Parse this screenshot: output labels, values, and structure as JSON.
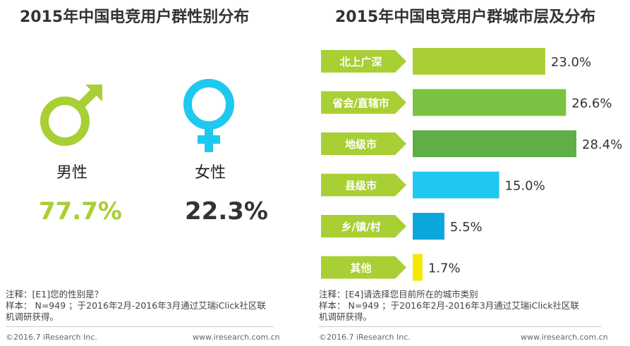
{
  "left_panel": {
    "title": "2015年中国电竞用户群性别分布",
    "male": {
      "label": "男性",
      "value": "77.7%",
      "color": "#a8cf34"
    },
    "female": {
      "label": "女性",
      "value": "22.3%",
      "color": "#1fc8ef"
    },
    "note_line1": "注释：[E1]您的性别是？",
    "note_line2": "样本： N=949 ；于2016年2月-2016年3月通过艾瑞iClick社区联",
    "note_line3": "机调研获得。",
    "footer_left": "©2016.7 iResearch Inc.",
    "footer_right": "www.iresearch.com.cn"
  },
  "right_panel": {
    "note_line1": "注释：[E4]请选择您目前所在的城市类别",
    "note_line2": "样本： N=949 ；于2016年2月-2016年3月通过艾瑞iClick社区联",
    "note_line3": "机调研获得。",
    "footer_left": "©2016.7 iResearch Inc.",
    "footer_right": "www.iresearch.com.cn"
  },
  "chart_data": {
    "type": "bar",
    "orientation": "horizontal",
    "title": "2015年中国电竞用户群城市层及分布",
    "categories": [
      "北上广深",
      "省会/直辖市",
      "地级市",
      "县级市",
      "乡/镇/村",
      "其他"
    ],
    "values": [
      23.0,
      26.6,
      28.4,
      15.0,
      5.5,
      1.7
    ],
    "value_labels": [
      "23.0%",
      "26.6%",
      "28.4%",
      "15.0%",
      "5.5%",
      "1.7%"
    ],
    "unit": "%",
    "xlim": [
      0,
      28.4
    ],
    "bar_colors": [
      "#a8cf34",
      "#7cc242",
      "#5fae46",
      "#1fc8ef",
      "#0ba6dc",
      "#f5e800"
    ],
    "label_color": "#a8cf34",
    "label_text_color": "#ffffff"
  }
}
